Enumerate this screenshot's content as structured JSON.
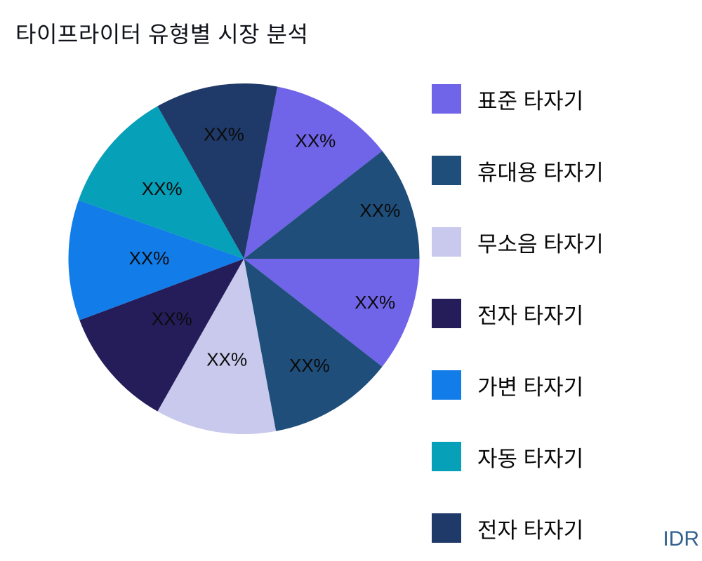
{
  "title": "타이프라이터 유형별 시장 분석",
  "footer_note": "IDR",
  "colors": {
    "purple": "#7064E8",
    "steel": "#1F4E7A",
    "lavender": "#C8C9EC",
    "darknavy": "#251D5A",
    "blue": "#127CE8",
    "teal": "#06A0B8",
    "navy": "#1F3A68"
  },
  "legend": {
    "items": [
      {
        "label": "표준 타자기",
        "color_key": "purple"
      },
      {
        "label": "휴대용 타자기",
        "color_key": "steel"
      },
      {
        "label": "무소음 타자기",
        "color_key": "lavender"
      },
      {
        "label": "전자 타자기",
        "color_key": "darknavy"
      },
      {
        "label": "가변 타자기",
        "color_key": "blue"
      },
      {
        "label": "자동 타자기",
        "color_key": "teal"
      },
      {
        "label": "전자 타자기",
        "color_key": "navy"
      }
    ]
  },
  "chart_data": {
    "type": "pie",
    "title": "타이프라이터 유형별 시장 분석",
    "value_label_placeholder": "XX%",
    "legend_position": "right",
    "unit_note": "IDR",
    "slices": [
      {
        "color_key": "purple",
        "start_cw_deg": 11,
        "sweep_deg": 41,
        "approx_pct": 11.4,
        "label": "XX%",
        "label_r": 0.78
      },
      {
        "color_key": "steel",
        "start_cw_deg": 52,
        "sweep_deg": 38,
        "approx_pct": 10.6,
        "label": "XX%",
        "label_r": 0.82
      },
      {
        "color_key": "purple",
        "start_cw_deg": 90,
        "sweep_deg": 38,
        "approx_pct": 10.6,
        "label": "XX%",
        "label_r": 0.79
      },
      {
        "color_key": "steel",
        "start_cw_deg": 128,
        "sweep_deg": 41.5,
        "approx_pct": 11.5,
        "label": "XX%",
        "label_r": 0.72
      },
      {
        "color_key": "lavender",
        "start_cw_deg": 169.5,
        "sweep_deg": 40,
        "approx_pct": 11.1,
        "label": "XX%",
        "label_r": 0.59
      },
      {
        "color_key": "darknavy",
        "start_cw_deg": 209.5,
        "sweep_deg": 40,
        "approx_pct": 11.1,
        "label": "XX%",
        "label_r": 0.54
      },
      {
        "color_key": "blue",
        "start_cw_deg": 249.5,
        "sweep_deg": 40,
        "approx_pct": 11.1,
        "label": "XX%",
        "label_r": 0.54
      },
      {
        "color_key": "teal",
        "start_cw_deg": 289.5,
        "sweep_deg": 41,
        "approx_pct": 11.4,
        "label": "XX%",
        "label_r": 0.61
      },
      {
        "color_key": "navy",
        "start_cw_deg": 330.5,
        "sweep_deg": 40.5,
        "approx_pct": 11.3,
        "label": "XX%",
        "label_r": 0.71
      }
    ]
  }
}
